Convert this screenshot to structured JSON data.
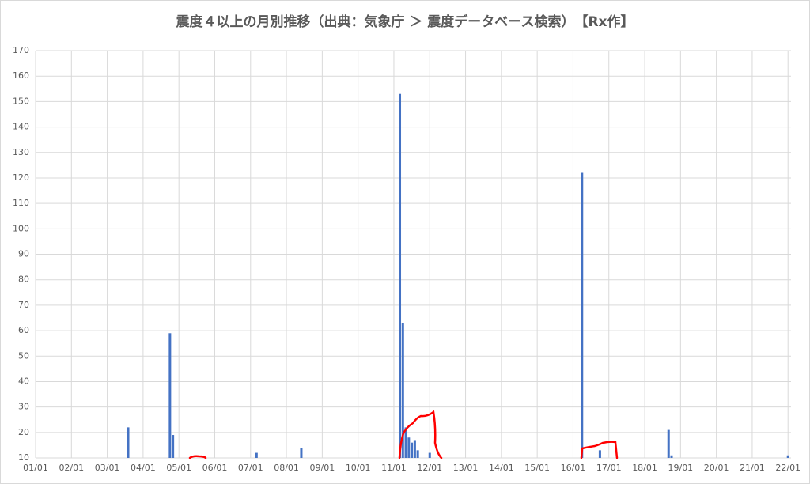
{
  "chart_data": {
    "type": "bar",
    "title": "震度４以上の月別推移（出典：気象庁 ＞ 震度データベース検索）　【Rx作】",
    "x": [
      31,
      45,
      46,
      74,
      89,
      122,
      123,
      124,
      125,
      126,
      127,
      128,
      132,
      183,
      189,
      212,
      213,
      252
    ],
    "values": [
      22,
      59,
      19,
      12,
      14,
      153,
      63,
      22,
      18,
      16,
      17,
      13,
      12,
      122,
      13,
      21,
      11,
      11
    ],
    "color": "#4472c4",
    "xlim": [
      0,
      253
    ],
    "xticks": [
      {
        "value": 0,
        "label": "01/01"
      },
      {
        "value": 12,
        "label": "02/01"
      },
      {
        "value": 24,
        "label": "03/01"
      },
      {
        "value": 36,
        "label": "04/01"
      },
      {
        "value": 48,
        "label": "05/01"
      },
      {
        "value": 60,
        "label": "06/01"
      },
      {
        "value": 72,
        "label": "07/01"
      },
      {
        "value": 84,
        "label": "08/01"
      },
      {
        "value": 96,
        "label": "09/01"
      },
      {
        "value": 108,
        "label": "10/01"
      },
      {
        "value": 120,
        "label": "11/01"
      },
      {
        "value": 132,
        "label": "12/01"
      },
      {
        "value": 144,
        "label": "13/01"
      },
      {
        "value": 156,
        "label": "14/01"
      },
      {
        "value": 168,
        "label": "15/01"
      },
      {
        "value": 180,
        "label": "16/01"
      },
      {
        "value": 192,
        "label": "17/01"
      },
      {
        "value": 204,
        "label": "18/01"
      },
      {
        "value": 216,
        "label": "19/01"
      },
      {
        "value": 228,
        "label": "20/01"
      },
      {
        "value": 240,
        "label": "21/01"
      },
      {
        "value": 252,
        "label": "22/01"
      }
    ],
    "ylim": [
      10,
      170
    ],
    "yticks": [
      10,
      20,
      30,
      40,
      50,
      60,
      70,
      80,
      90,
      100,
      110,
      120,
      130,
      140,
      150,
      160,
      170
    ],
    "grid": true
  }
}
